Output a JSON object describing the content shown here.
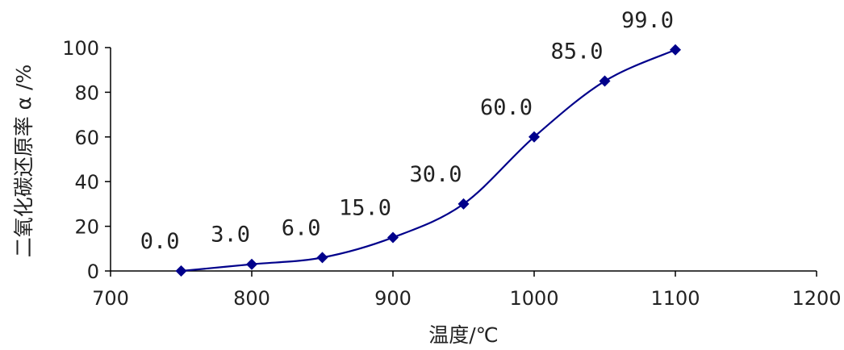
{
  "chart_data": {
    "type": "line",
    "x": [
      750,
      800,
      850,
      900,
      950,
      1000,
      1050,
      1100
    ],
    "series": [
      {
        "values": [
          0.0,
          3.0,
          6.0,
          15.0,
          30.0,
          60.0,
          85.0,
          99.0
        ],
        "color": "#00008B"
      }
    ],
    "data_labels": [
      "0.0",
      "3.0",
      "6.0",
      "15.0",
      "30.0",
      "60.0",
      "85.0",
      "99.0"
    ],
    "xlabel": "温度/℃",
    "ylabel": "二氧化碳还原率 α /%",
    "xlim": [
      700,
      1200
    ],
    "ylim": [
      0,
      100
    ],
    "xticks": [
      700,
      800,
      900,
      1000,
      1100,
      1200
    ],
    "yticks": [
      0,
      20,
      40,
      60,
      80,
      100
    ],
    "grid": false,
    "marker": "diamond",
    "smooth": true
  }
}
